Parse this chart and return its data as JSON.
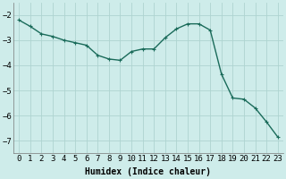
{
  "x": [
    0,
    1,
    2,
    3,
    4,
    5,
    6,
    7,
    8,
    9,
    10,
    11,
    12,
    13,
    14,
    15,
    16,
    17,
    18,
    19,
    20,
    21,
    22,
    23
  ],
  "y": [
    -2.2,
    -2.45,
    -2.75,
    -2.85,
    -3.0,
    -3.1,
    -3.2,
    -3.6,
    -3.75,
    -3.8,
    -3.45,
    -3.35,
    -3.35,
    -2.9,
    -2.55,
    -2.35,
    -2.35,
    -2.6,
    -4.35,
    -5.3,
    -5.35,
    -5.7,
    -6.25,
    -6.85
  ],
  "line_color": "#1a6b5a",
  "marker": "+",
  "marker_size": 3,
  "marker_lw": 0.8,
  "bg_color": "#ceecea",
  "grid_color": "#aed4d0",
  "xlabel": "Humidex (Indice chaleur)",
  "ylim": [
    -7.5,
    -1.5
  ],
  "xlim": [
    -0.5,
    23.5
  ],
  "yticks": [
    -7,
    -6,
    -5,
    -4,
    -3,
    -2
  ],
  "xtick_labels": [
    "0",
    "1",
    "2",
    "3",
    "4",
    "5",
    "6",
    "7",
    "8",
    "9",
    "10",
    "11",
    "12",
    "13",
    "14",
    "15",
    "16",
    "17",
    "18",
    "19",
    "20",
    "21",
    "22",
    "23"
  ],
  "xlabel_fontsize": 7,
  "tick_fontsize": 6.5,
  "line_width": 1.0
}
